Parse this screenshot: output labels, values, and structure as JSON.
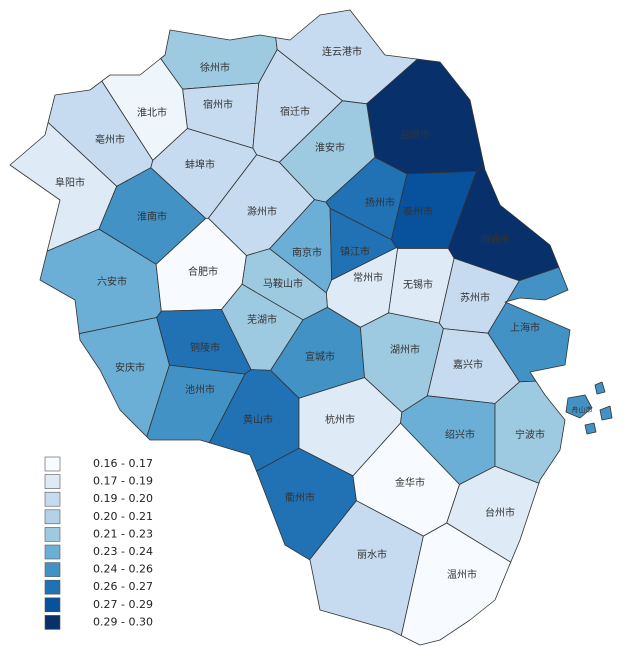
{
  "regions": [
    {
      "name": "徐州市",
      "color": "#9ecae1"
    },
    {
      "name": "连云港市",
      "color": "#c6dbef"
    },
    {
      "name": "宿州市",
      "color": "#c6dbef"
    },
    {
      "name": "淮北市",
      "color": "#eef5fb"
    },
    {
      "name": "亳州市",
      "color": "#c6dbef"
    },
    {
      "name": "宿迁市",
      "color": "#c6dbef"
    },
    {
      "name": "盐城市",
      "color": "#08306b"
    },
    {
      "name": "淮安市",
      "color": "#9ecae1"
    },
    {
      "name": "蚌埠市",
      "color": "#c6dbef"
    },
    {
      "name": "阜阳市",
      "color": "#deebf7"
    },
    {
      "name": "淮南市",
      "color": "#4292c6"
    },
    {
      "name": "滁州市",
      "color": "#c6dbef"
    },
    {
      "name": "扬州市",
      "color": "#2171b5"
    },
    {
      "name": "泰州市",
      "color": "#08519c"
    },
    {
      "name": "南通市",
      "color": "#08306b"
    },
    {
      "name": "六安市",
      "color": "#6baed6"
    },
    {
      "name": "合肥市",
      "color": "#f7fbff"
    },
    {
      "name": "南京市",
      "color": "#6baed6"
    },
    {
      "name": "镇江市",
      "color": "#2171b5"
    },
    {
      "name": "常州市",
      "color": "#deebf7"
    },
    {
      "name": "无锡市",
      "color": "#deebf7"
    },
    {
      "name": "苏州市",
      "color": "#c6dbef"
    },
    {
      "name": "马鞍山市",
      "color": "#9ecae1"
    },
    {
      "name": "芜湖市",
      "color": "#9ecae1"
    },
    {
      "name": "上海市",
      "color": "#4292c6"
    },
    {
      "name": "铜陵市",
      "color": "#2171b5"
    },
    {
      "name": "宣城市",
      "color": "#4292c6"
    },
    {
      "name": "湖州市",
      "color": "#9ecae1"
    },
    {
      "name": "嘉兴市",
      "color": "#c6dbef"
    },
    {
      "name": "安庆市",
      "color": "#6baed6"
    },
    {
      "name": "池州市",
      "color": "#4292c6"
    },
    {
      "name": "黄山市",
      "color": "#2171b5"
    },
    {
      "name": "杭州市",
      "color": "#deebf7"
    },
    {
      "name": "绍兴市",
      "color": "#6baed6"
    },
    {
      "name": "宁波市",
      "color": "#9ecae1"
    },
    {
      "name": "衢州市",
      "color": "#2171b5"
    },
    {
      "name": "金华市",
      "color": "#f7fbff"
    },
    {
      "name": "台州市",
      "color": "#deebf7"
    },
    {
      "name": "丽水市",
      "color": "#c6dbef"
    },
    {
      "name": "温州市",
      "color": "#f7fbff"
    },
    {
      "name": "舟山市",
      "color": "#4292c6"
    }
  ],
  "legend": [
    {
      "label": "0.16 - 0.17",
      "color": "#f7fbff"
    },
    {
      "label": "0.17 - 0.19",
      "color": "#deebf7"
    },
    {
      "label": "0.19 - 0.20",
      "color": "#c6dbef"
    },
    {
      "label": "0.20 - 0.21",
      "color": "#b2d2e8"
    },
    {
      "label": "0.21 - 0.23",
      "color": "#9ecae1"
    },
    {
      "label": "0.23 - 0.24",
      "color": "#6baed6"
    },
    {
      "label": "0.24 - 0.26",
      "color": "#4292c6"
    },
    {
      "label": "0.26 - 0.27",
      "color": "#2171b5"
    },
    {
      "label": "0.27 - 0.29",
      "color": "#08519c"
    },
    {
      "label": "0.29 - 0.30",
      "color": "#08306b"
    }
  ]
}
